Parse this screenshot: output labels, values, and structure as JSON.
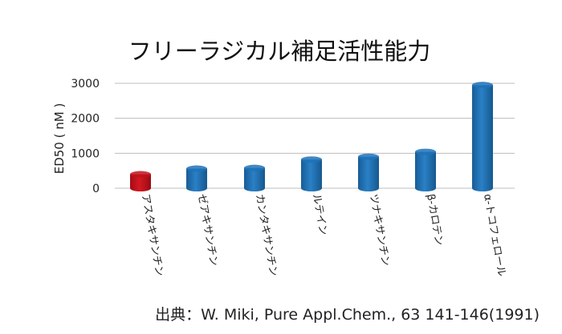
{
  "chart_data": {
    "type": "bar",
    "title": "フリーラジカル補足活性能力",
    "ylabel": "ED50 ( nM )",
    "xlabel": "",
    "ylim": [
      0,
      3000
    ],
    "yticks": [
      "0",
      "1000",
      "2000",
      "3000"
    ],
    "grid": true,
    "categories": [
      "アスタキサンチン",
      "ゼアキサンチン",
      "カンタキサンチン",
      "ルテイン",
      "ツナキサンチン",
      "β-カロテン",
      "α-トコフェロール"
    ],
    "values": [
      400,
      560,
      580,
      820,
      900,
      1040,
      2950
    ],
    "highlight_color": "#c0121b",
    "bar_color": "#1f72b8",
    "source": "出典：W. Miki, Pure Appl.Chem., 63 141-146(1991)"
  }
}
